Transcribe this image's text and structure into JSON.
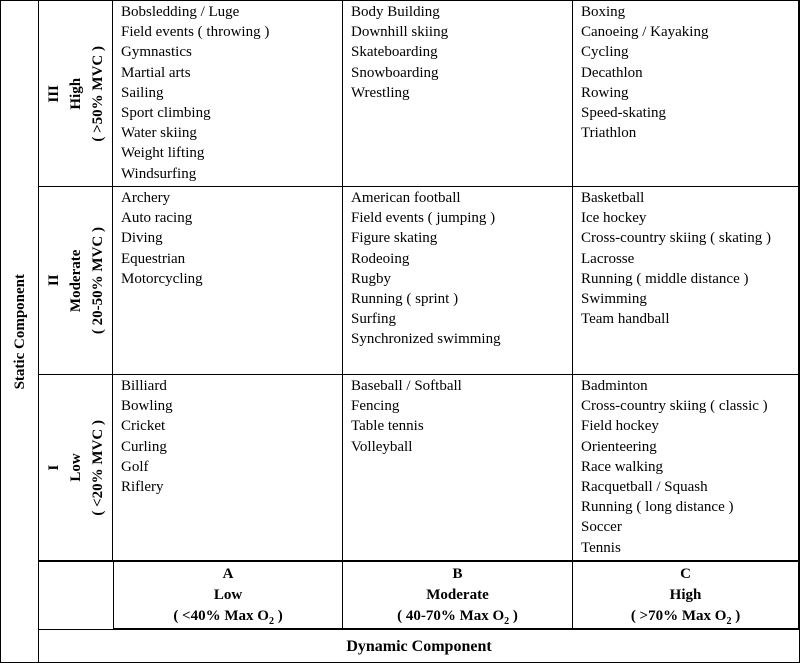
{
  "axes": {
    "static": "Static Component",
    "dynamic": "Dynamic Component"
  },
  "rows": [
    {
      "numeral": "III",
      "level": "High",
      "range": "( >50% MVC )",
      "cells": [
        [
          "Bobsledding / Luge",
          "Field events ( throwing )",
          "Gymnastics",
          "Martial arts",
          "Sailing",
          "Sport climbing",
          "Water skiing",
          "Weight lifting",
          "Windsurfing"
        ],
        [
          "Body Building",
          "Downhill skiing",
          "Skateboarding",
          "Snowboarding",
          "Wrestling"
        ],
        [
          "Boxing",
          "Canoeing / Kayaking",
          "Cycling",
          "Decathlon",
          "Rowing",
          "Speed-skating",
          "Triathlon"
        ]
      ]
    },
    {
      "numeral": "II",
      "level": "Moderate",
      "range": "( 20-50% MVC )",
      "cells": [
        [
          "Archery",
          "Auto racing",
          "Diving",
          "Equestrian",
          "Motorcycling"
        ],
        [
          "American football",
          "Field events ( jumping )",
          "Figure skating",
          "Rodeoing",
          "Rugby",
          "Running ( sprint )",
          "Surfing",
          "Synchronized swimming"
        ],
        [
          "Basketball",
          "Ice hockey",
          "Cross-country skiing ( skating )",
          "Lacrosse",
          "Running ( middle distance )",
          "Swimming",
          "Team handball"
        ]
      ]
    },
    {
      "numeral": "I",
      "level": "Low",
      "range": "( <20% MVC )",
      "cells": [
        [
          "Billiard",
          "Bowling",
          "Cricket",
          "Curling",
          "Golf",
          "Riflery"
        ],
        [
          "Baseball / Softball",
          "Fencing",
          "Table tennis",
          "Volleyball"
        ],
        [
          "Badminton",
          "Cross-country skiing ( classic )",
          "Field hockey",
          "Orienteering",
          "Race walking",
          "Racquetball / Squash",
          "Running ( long distance )",
          "Soccer",
          "Tennis"
        ]
      ]
    }
  ],
  "columns": [
    {
      "letter": "A",
      "level": "Low",
      "range": {
        "pre": "( <40% Max O",
        "sub": "2",
        "post": " )"
      }
    },
    {
      "letter": "B",
      "level": "Moderate",
      "range": {
        "pre": "( 40-70% Max O",
        "sub": "2",
        "post": " )"
      }
    },
    {
      "letter": "C",
      "level": "High",
      "range": {
        "pre": "( >70% Max O",
        "sub": "2",
        "post": " )"
      }
    }
  ]
}
